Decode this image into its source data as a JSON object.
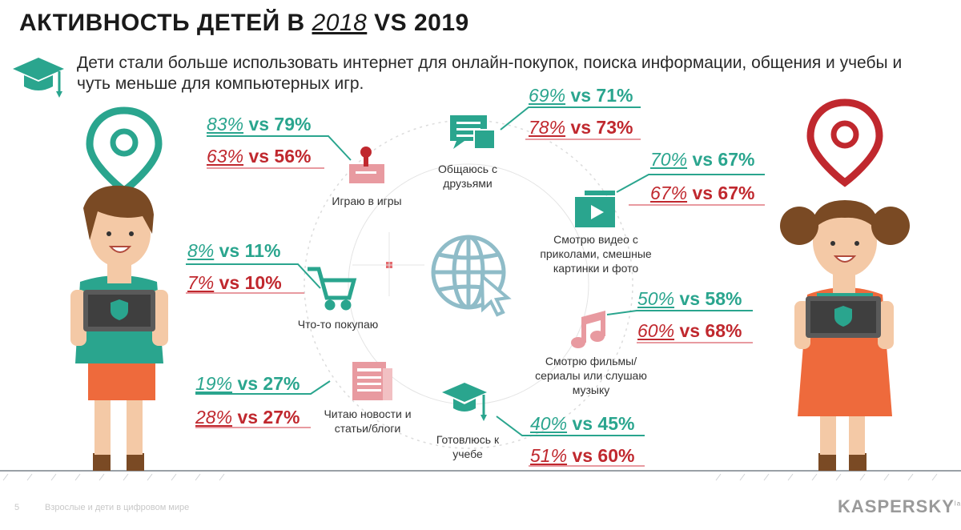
{
  "title": {
    "pre": "АКТИВНОСТЬ ДЕТЕЙ В ",
    "year_a": "2018",
    "post": " VS 2019"
  },
  "subtitle": "Дети стали больше использовать интернет для онлайн-покупок, поиска информации, общения и учебы и чуть меньше для компьютерных игр.",
  "colors": {
    "boy": "#2aa58e",
    "girl": "#c0282e",
    "circle": "#d9d9d9",
    "icon_teal": "#2aa58e",
    "icon_pink": "#e89aa0"
  },
  "activities": [
    {
      "label": "Играю в игры",
      "icon": "joystick-icon",
      "boy": {
        "a": "83%",
        "b": "79%"
      },
      "girl": {
        "a": "63%",
        "b": "56%"
      }
    },
    {
      "label": "Общаюсь с друзьями",
      "icon": "chat-icon",
      "boy": {
        "a": "69%",
        "b": "71%"
      },
      "girl": {
        "a": "78%",
        "b": "73%"
      }
    },
    {
      "label": "Смотрю видео с приколами, смешные картинки и фото",
      "icon": "video-icon",
      "boy": {
        "a": "70%",
        "b": "67%"
      },
      "girl": {
        "a": "67%",
        "b": "67%"
      }
    },
    {
      "label": "Что-то покупаю",
      "icon": "shopping-cart-icon",
      "boy": {
        "a": "8%",
        "b": "11%"
      },
      "girl": {
        "a": "7%",
        "b": "10%"
      }
    },
    {
      "label": "Смотрю фильмы/сериалы или слушаю музыку",
      "icon": "music-note-icon",
      "boy": {
        "a": "50%",
        "b": "58%"
      },
      "girl": {
        "a": "60%",
        "b": "68%"
      }
    },
    {
      "label": "Читаю новости и статьи/блоги",
      "icon": "newspaper-icon",
      "boy": {
        "a": "19%",
        "b": "27%"
      },
      "girl": {
        "a": "28%",
        "b": "27%"
      }
    },
    {
      "label": "Готовлюсь к учебе",
      "icon": "graduation-cap-icon",
      "boy": {
        "a": "40%",
        "b": "45%"
      },
      "girl": {
        "a": "51%",
        "b": "60%"
      }
    }
  ],
  "vs": "vs",
  "footer": {
    "page": "5",
    "text": "Взрослые и дети в цифровом мире",
    "brand": "KASPERSKY",
    "brand_sup": "lab"
  }
}
